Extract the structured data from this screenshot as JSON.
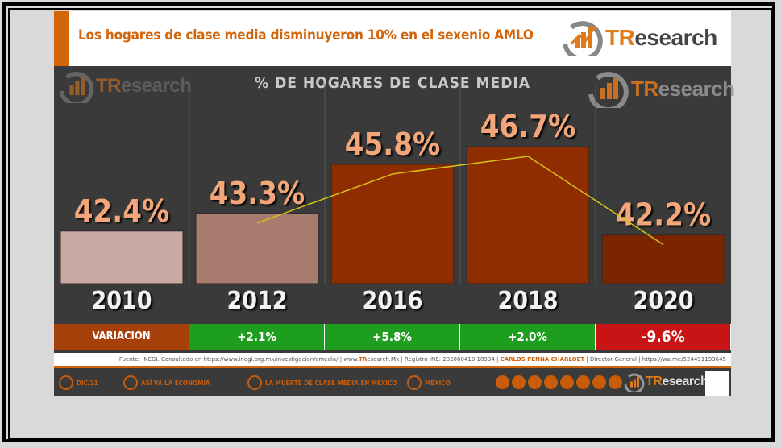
{
  "header": {
    "title": "Los hogares de clase media disminuyeron 10% en el sexenio AMLO",
    "logo_prefix": "TR",
    "logo_suffix": "esearch"
  },
  "chart_data": {
    "type": "bar",
    "title": "% DE HOGARES DE CLASE MEDIA",
    "categories": [
      "2010",
      "2012",
      "2016",
      "2018",
      "2020"
    ],
    "values": [
      42.4,
      43.3,
      45.8,
      46.7,
      42.2
    ],
    "value_labels": [
      "42.4%",
      "43.3%",
      "45.8%",
      "46.7%",
      "42.2%"
    ],
    "bar_colors": [
      "#c9a9a2",
      "#a87b6f",
      "#8f2d00",
      "#8f2d00",
      "#7a2400"
    ],
    "trend_line": true,
    "line_color": "#d4c21a",
    "variation_label": "VARIACIÓN",
    "variation": [
      "+2.1%",
      "+5.8%",
      "+2.0%",
      "-9.6%"
    ],
    "variation_colors": [
      "#1e9e1e",
      "#1e9e1e",
      "#1e9e1e",
      "#c81414"
    ]
  },
  "source": {
    "prefix": "Fuente: INEGI. Consultado en https://www.inegi.org.mx/investigacion/cmedia/ | www.",
    "brand": "TR",
    "mid": "esearch.Mx | Registro INE: 202000410 18934 | ",
    "author": "CARLOS PENNA CHARLOET",
    "tail": " | Director General | https://wa.me/524491193645"
  },
  "footer": {
    "date": "DIC/21",
    "item1": "ASÍ VA LA ECONOMÍA",
    "item2": "LA MUERTE DE CLASE MEDIA EN MÉXICO",
    "item3": "MÉXICO",
    "logo_prefix": "TR",
    "logo_suffix": "esearch"
  },
  "colors": {
    "accent": "#d2640a",
    "panel": "#3a3a3a"
  },
  "icons": [
    "calendar-icon",
    "economy-icon",
    "chat-icon",
    "location-icon",
    "globe-icon",
    "social-icons",
    "qr-code-icon"
  ]
}
